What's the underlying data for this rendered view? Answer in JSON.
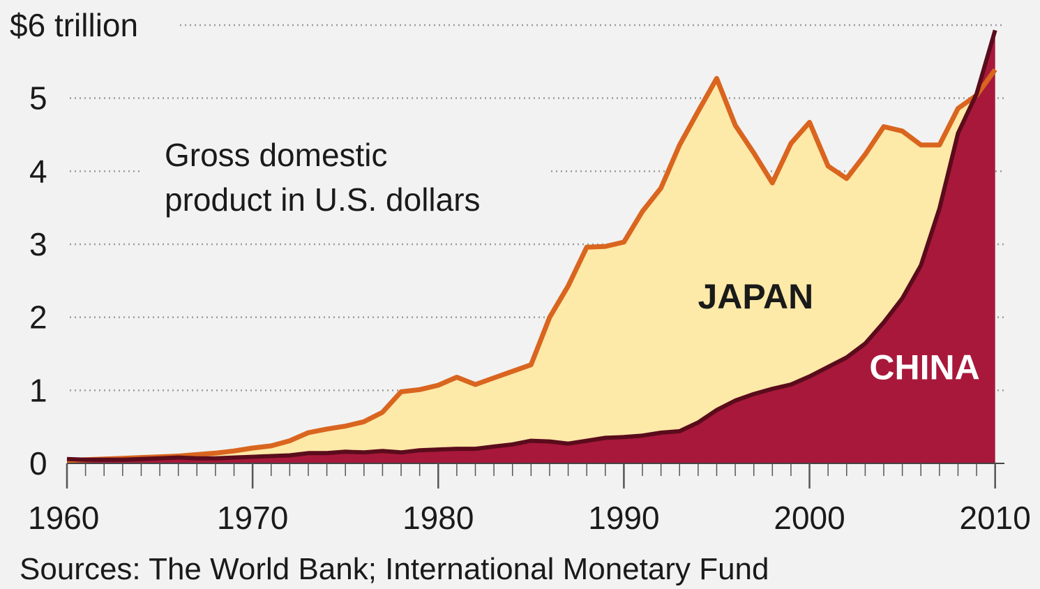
{
  "chart_data": {
    "type": "area",
    "subtitle_lines": [
      "Gross domestic",
      "product in U.S. dollars"
    ],
    "source": "Sources: The World Bank; International Monetary Fund",
    "xlim": [
      1960,
      2010.5
    ],
    "ylim": [
      0,
      6
    ],
    "x_ticks": [
      1960,
      1970,
      1980,
      1990,
      2000,
      2010
    ],
    "y_ticks": [
      {
        "value": 0,
        "label": "0"
      },
      {
        "value": 1,
        "label": "1"
      },
      {
        "value": 2,
        "label": "2"
      },
      {
        "value": 3,
        "label": "3"
      },
      {
        "value": 4,
        "label": "4"
      },
      {
        "value": 5,
        "label": "5"
      },
      {
        "value": 6,
        "label": "$6 trillion"
      }
    ],
    "grid": true,
    "series": [
      {
        "name": "JAPAN",
        "fill": "#fde9a8",
        "line": "#d9651f",
        "x": [
          1960,
          1961,
          1962,
          1963,
          1964,
          1965,
          1966,
          1967,
          1968,
          1969,
          1970,
          1971,
          1972,
          1973,
          1974,
          1975,
          1976,
          1977,
          1978,
          1979,
          1980,
          1981,
          1982,
          1983,
          1984,
          1985,
          1986,
          1987,
          1988,
          1989,
          1990,
          1991,
          1992,
          1993,
          1994,
          1995,
          1996,
          1997,
          1998,
          1999,
          2000,
          2001,
          2002,
          2003,
          2004,
          2005,
          2006,
          2007,
          2008,
          2009,
          2010
        ],
        "values": [
          0.04,
          0.05,
          0.06,
          0.07,
          0.08,
          0.09,
          0.1,
          0.12,
          0.14,
          0.17,
          0.21,
          0.24,
          0.31,
          0.42,
          0.47,
          0.51,
          0.57,
          0.7,
          0.98,
          1.01,
          1.07,
          1.18,
          1.08,
          1.17,
          1.26,
          1.35,
          2.0,
          2.43,
          2.96,
          2.97,
          3.03,
          3.45,
          3.77,
          4.36,
          4.82,
          5.27,
          4.63,
          4.25,
          3.84,
          4.38,
          4.67,
          4.07,
          3.9,
          4.23,
          4.61,
          4.55,
          4.36,
          4.36,
          4.86,
          5.04,
          5.39
        ]
      },
      {
        "name": "CHINA",
        "fill": "#a8183a",
        "line": "#5a0c1c",
        "x": [
          1960,
          1961,
          1962,
          1963,
          1964,
          1965,
          1966,
          1967,
          1968,
          1969,
          1970,
          1971,
          1972,
          1973,
          1974,
          1975,
          1976,
          1977,
          1978,
          1979,
          1980,
          1981,
          1982,
          1983,
          1984,
          1985,
          1986,
          1987,
          1988,
          1989,
          1990,
          1991,
          1992,
          1993,
          1994,
          1995,
          1996,
          1997,
          1998,
          1999,
          2000,
          2001,
          2002,
          2003,
          2004,
          2005,
          2006,
          2007,
          2008,
          2009,
          2010
        ],
        "values": [
          0.06,
          0.05,
          0.05,
          0.05,
          0.06,
          0.07,
          0.08,
          0.07,
          0.07,
          0.08,
          0.09,
          0.1,
          0.11,
          0.14,
          0.14,
          0.16,
          0.15,
          0.17,
          0.15,
          0.18,
          0.19,
          0.2,
          0.2,
          0.23,
          0.26,
          0.31,
          0.3,
          0.27,
          0.31,
          0.35,
          0.36,
          0.38,
          0.42,
          0.44,
          0.56,
          0.73,
          0.86,
          0.95,
          1.02,
          1.08,
          1.19,
          1.32,
          1.45,
          1.64,
          1.93,
          2.26,
          2.71,
          3.49,
          4.52,
          5.06,
          5.93
        ]
      }
    ],
    "series_labels": [
      {
        "series": "JAPAN",
        "text": "JAPAN",
        "x": 1997.1,
        "y": 2.12,
        "color": "#1a1a1a"
      },
      {
        "series": "CHINA",
        "text": "CHINA",
        "x": 2006.2,
        "y": 1.15,
        "color": "#ffffff"
      }
    ]
  }
}
